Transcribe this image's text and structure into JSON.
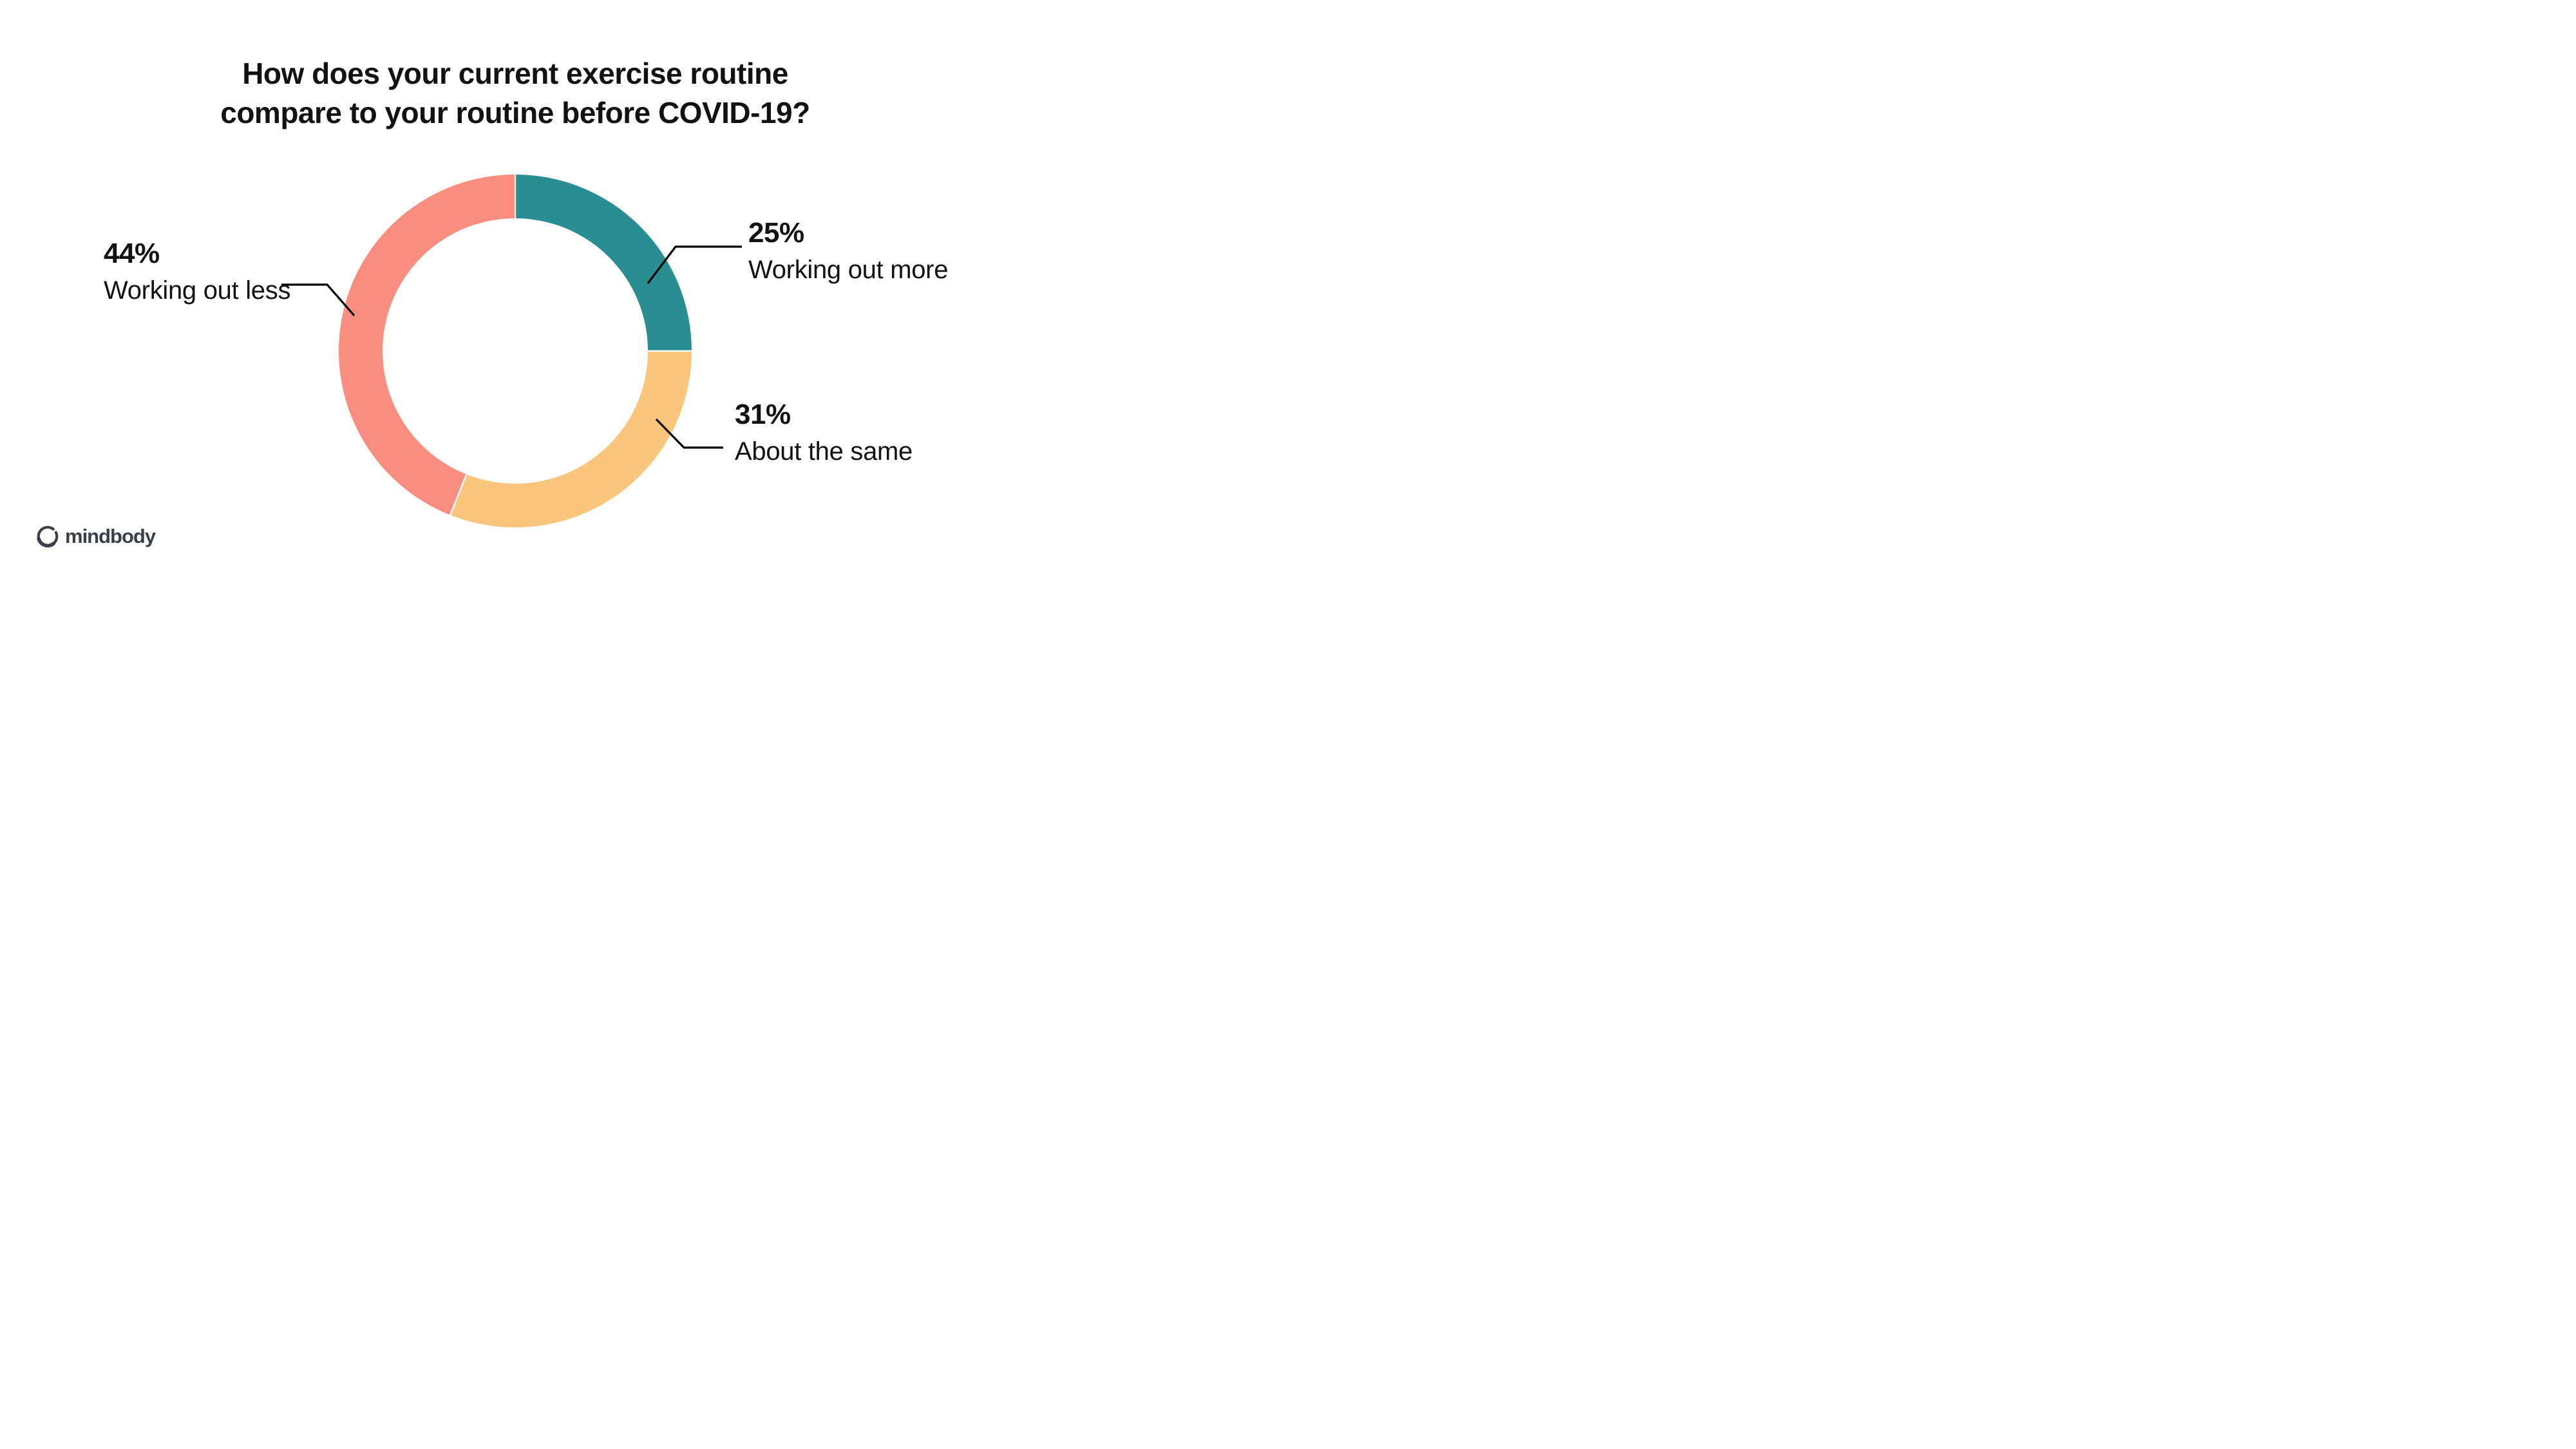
{
  "title": {
    "line1": "How does your current exercise routine",
    "line2": "compare to your routine before COVID-19?"
  },
  "chart_data": {
    "type": "pie",
    "subtype": "donut",
    "title": "How does your current exercise routine compare to your routine before COVID-19?",
    "start_angle_deg": 0,
    "direction": "clockwise",
    "inner_radius_ratio": 0.75,
    "legend_position": "callouts",
    "segments": [
      {
        "label": "Working out more",
        "value": 25,
        "display": "25%",
        "color": "#298E92"
      },
      {
        "label": "About the same",
        "value": 31,
        "display": "31%",
        "color": "#FAC57D"
      },
      {
        "label": "Working out less",
        "value": 44,
        "display": "44%",
        "color": "#F98D80"
      }
    ],
    "separator_color": "#FFFFFF",
    "callout_color": "#000000"
  },
  "logo": {
    "brand": "mindbody",
    "icon": "enso-circle-icon",
    "color": "#3A4049"
  }
}
